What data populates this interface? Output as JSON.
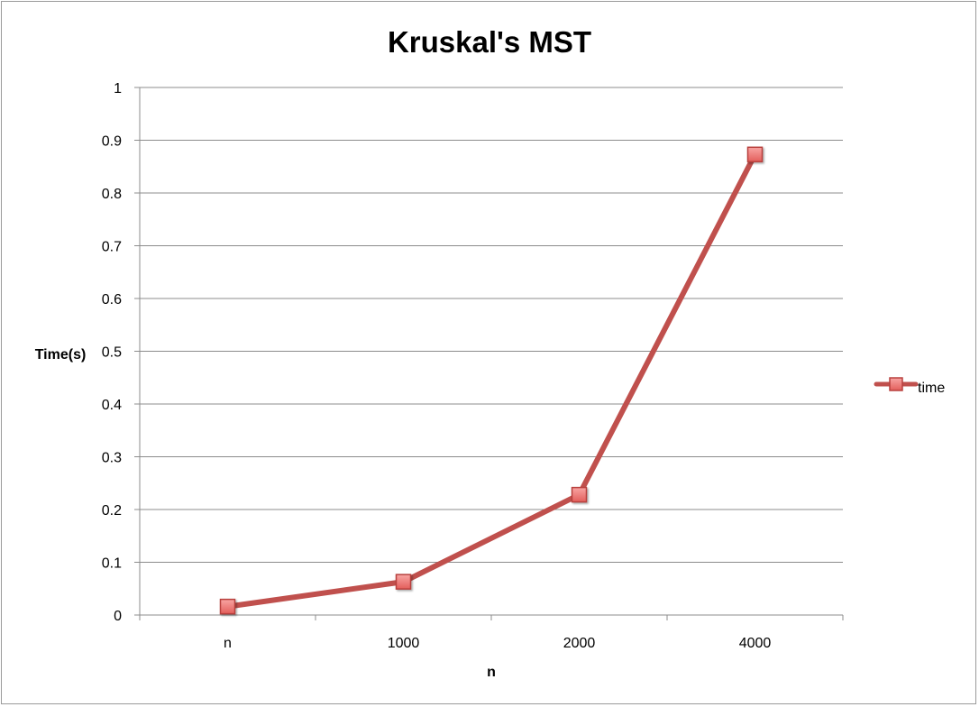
{
  "chart_data": {
    "type": "line",
    "title": "Kruskal's MST",
    "xlabel": "n",
    "ylabel": "Time(s)",
    "categories": [
      "n",
      "1000",
      "2000",
      "4000"
    ],
    "ylim": [
      0,
      1
    ],
    "yticks": [
      0,
      0.1,
      0.2,
      0.3,
      0.4,
      0.5,
      0.6,
      0.7,
      0.8,
      0.9,
      1
    ],
    "ytick_labels": [
      "0",
      "0.1",
      "0.2",
      "0.3",
      "0.4",
      "0.5",
      "0.6",
      "0.7",
      "0.8",
      "0.9",
      "1"
    ],
    "grid": true,
    "legend_position": "right",
    "series": [
      {
        "name": "time",
        "values": [
          0.016,
          0.063,
          0.228,
          0.873
        ],
        "color": "#c0504d",
        "marker_fill": "#f07d7b",
        "marker": "square"
      }
    ]
  }
}
